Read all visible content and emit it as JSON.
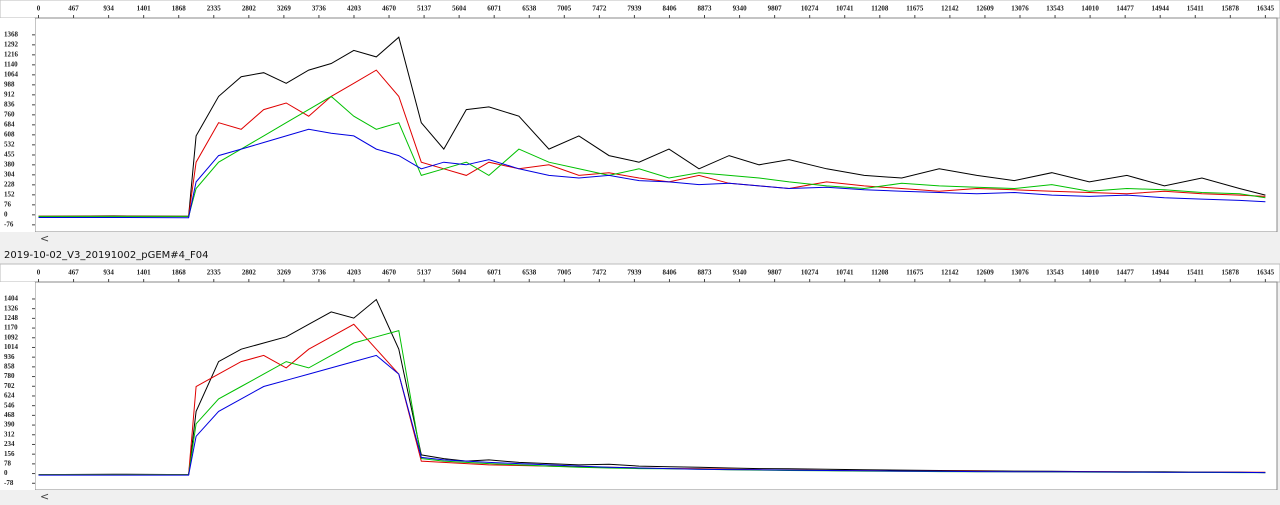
{
  "sample_label": "2019-10-02_V3_20191002_pGEM#4_F04",
  "scroll_left": "<",
  "chart_data": [
    {
      "type": "line",
      "x": [
        0,
        1000,
        2000,
        2100,
        2400,
        2700,
        3000,
        3300,
        3600,
        3900,
        4200,
        4500,
        4800,
        5100,
        5400,
        5700,
        6000,
        6400,
        6800,
        7200,
        7600,
        8000,
        8400,
        8800,
        9200,
        9600,
        10000,
        10500,
        11000,
        11500,
        12000,
        12500,
        13000,
        13500,
        14000,
        14500,
        15000,
        15500,
        16000,
        16345
      ],
      "xlim": [
        -20,
        16500
      ],
      "xticks": [
        0,
        467,
        934,
        1401,
        1868,
        2335,
        2802,
        3269,
        3736,
        4203,
        4670,
        5137,
        5604,
        6071,
        6538,
        7005,
        7472,
        7939,
        8406,
        8873,
        9340,
        9807,
        10274,
        10741,
        11208,
        11675,
        12142,
        12609,
        13076,
        13543,
        14010,
        14477,
        14944,
        15411,
        15878,
        16345
      ],
      "ylim": [
        -100,
        1420
      ],
      "yticks": [
        -76,
        0,
        76,
        152,
        228,
        304,
        380,
        455,
        532,
        608,
        684,
        760,
        836,
        912,
        988,
        1064,
        1140,
        1216,
        1292,
        1368
      ],
      "series": [
        {
          "name": "black",
          "color": "#000000",
          "values": [
            -10,
            -8,
            -10,
            600,
            900,
            1050,
            1080,
            1000,
            1100,
            1150,
            1250,
            1200,
            1350,
            700,
            500,
            800,
            820,
            750,
            500,
            600,
            450,
            400,
            500,
            350,
            450,
            380,
            420,
            350,
            300,
            280,
            350,
            300,
            260,
            320,
            250,
            300,
            220,
            280,
            200,
            150
          ]
        },
        {
          "name": "red",
          "color": "#e00000",
          "values": [
            -10,
            -10,
            -12,
            400,
            700,
            650,
            800,
            850,
            750,
            900,
            1000,
            1100,
            900,
            400,
            350,
            300,
            400,
            350,
            380,
            300,
            320,
            280,
            250,
            300,
            240,
            220,
            200,
            250,
            220,
            200,
            180,
            200,
            190,
            180,
            170,
            160,
            180,
            160,
            150,
            140
          ]
        },
        {
          "name": "green",
          "color": "#00c000",
          "values": [
            -12,
            -12,
            -12,
            200,
            400,
            500,
            600,
            700,
            800,
            900,
            750,
            650,
            700,
            300,
            350,
            400,
            300,
            500,
            400,
            350,
            300,
            350,
            280,
            320,
            300,
            280,
            250,
            220,
            200,
            240,
            220,
            210,
            200,
            230,
            180,
            200,
            190,
            170,
            160,
            130
          ]
        },
        {
          "name": "blue",
          "color": "#0000e0",
          "values": [
            -20,
            -20,
            -22,
            250,
            450,
            500,
            550,
            600,
            650,
            620,
            600,
            500,
            450,
            350,
            400,
            380,
            420,
            350,
            300,
            280,
            300,
            260,
            250,
            230,
            240,
            220,
            200,
            210,
            190,
            180,
            170,
            160,
            170,
            150,
            140,
            150,
            130,
            120,
            110,
            100
          ]
        }
      ]
    },
    {
      "type": "line",
      "x": [
        0,
        1000,
        2000,
        2100,
        2400,
        2700,
        3000,
        3300,
        3600,
        3900,
        4200,
        4500,
        4800,
        5100,
        5400,
        5700,
        6000,
        6400,
        6800,
        7200,
        7600,
        8000,
        8400,
        8800,
        9200,
        9600,
        10000,
        10500,
        11000,
        11500,
        12000,
        12500,
        13000,
        13500,
        14000,
        14500,
        15000,
        15500,
        16000,
        16345
      ],
      "xlim": [
        -20,
        16500
      ],
      "xticks": [
        0,
        467,
        934,
        1401,
        1868,
        2335,
        2802,
        3269,
        3736,
        4203,
        4670,
        5137,
        5604,
        6071,
        6538,
        7005,
        7472,
        7939,
        8406,
        8873,
        9340,
        9807,
        10274,
        10741,
        11208,
        11675,
        12142,
        12609,
        13076,
        13543,
        14010,
        14477,
        14944,
        15411,
        15878,
        16345
      ],
      "ylim": [
        -100,
        1460
      ],
      "yticks": [
        -78,
        0,
        78,
        156,
        234,
        312,
        390,
        468,
        546,
        624,
        702,
        780,
        858,
        936,
        1014,
        1092,
        1170,
        1248,
        1326,
        1404
      ],
      "series": [
        {
          "name": "black",
          "color": "#000000",
          "values": [
            -8,
            -5,
            -8,
            500,
            900,
            1000,
            1050,
            1100,
            1200,
            1300,
            1250,
            1400,
            1000,
            150,
            120,
            100,
            110,
            90,
            80,
            70,
            75,
            60,
            55,
            50,
            45,
            40,
            38,
            35,
            30,
            28,
            25,
            22,
            20,
            18,
            16,
            15,
            14,
            12,
            10,
            8
          ]
        },
        {
          "name": "red",
          "color": "#e00000",
          "values": [
            -8,
            -8,
            -8,
            700,
            800,
            900,
            950,
            850,
            1000,
            1100,
            1200,
            1000,
            800,
            100,
            90,
            80,
            70,
            65,
            60,
            55,
            50,
            45,
            40,
            40,
            35,
            30,
            28,
            25,
            22,
            20,
            20,
            18,
            16,
            15,
            14,
            13,
            12,
            11,
            10,
            10
          ]
        },
        {
          "name": "green",
          "color": "#00c000",
          "values": [
            -10,
            -10,
            -10,
            400,
            600,
            700,
            800,
            900,
            850,
            950,
            1050,
            1100,
            1150,
            120,
            100,
            90,
            80,
            70,
            60,
            50,
            45,
            40,
            38,
            35,
            30,
            28,
            25,
            22,
            20,
            18,
            16,
            15,
            14,
            13,
            12,
            11,
            10,
            9,
            8,
            8
          ]
        },
        {
          "name": "blue",
          "color": "#0000e0",
          "values": [
            -12,
            -12,
            -12,
            300,
            500,
            600,
            700,
            750,
            800,
            850,
            900,
            950,
            800,
            130,
            110,
            100,
            90,
            80,
            70,
            60,
            50,
            45,
            40,
            35,
            32,
            30,
            28,
            25,
            22,
            20,
            18,
            16,
            15,
            14,
            13,
            12,
            11,
            10,
            9,
            8
          ]
        }
      ]
    }
  ]
}
